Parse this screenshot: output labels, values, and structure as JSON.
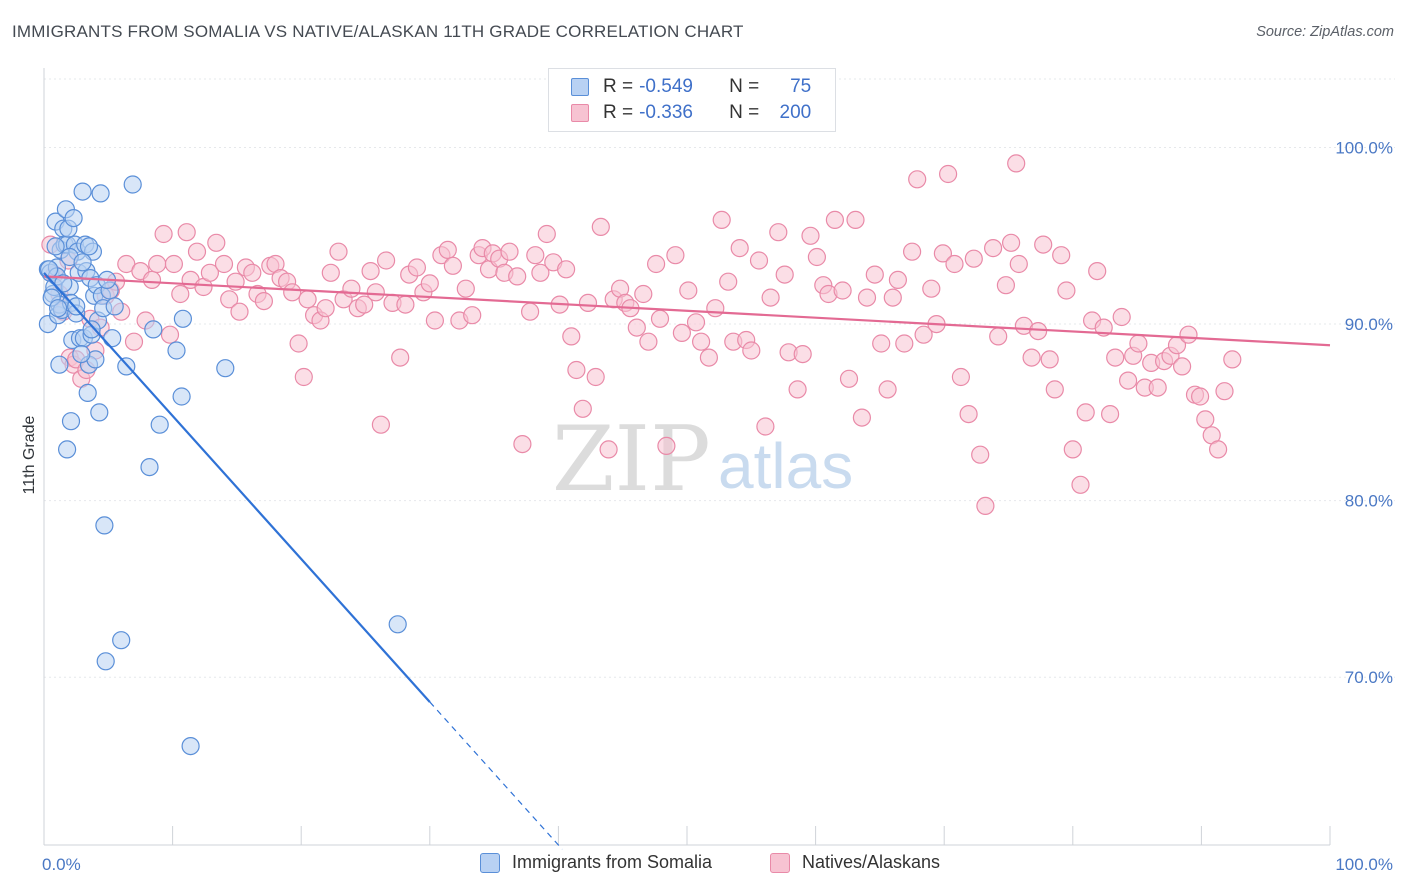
{
  "title": "IMMIGRANTS FROM SOMALIA VS NATIVE/ALASKAN 11TH GRADE CORRELATION CHART",
  "source": "Source: ZipAtlas.com",
  "watermark": {
    "zip": "ZIP",
    "atlas": "atlas"
  },
  "legend": {
    "series1": {
      "r_label": "R = ",
      "r_value": "-0.549",
      "n_label": "N = ",
      "n_value": "75"
    },
    "series2": {
      "r_label": "R = ",
      "r_value": "-0.336",
      "n_label": "N = ",
      "n_value": "200"
    }
  },
  "bottom_legend": {
    "series1": "Immigrants from Somalia",
    "series2": "Natives/Alaskans"
  },
  "colors": {
    "series1_fill": "#b8d1f3",
    "series1_stroke": "#5a8fd8",
    "series1_line": "#2f72d6",
    "series2_fill": "#f7c3d2",
    "series2_stroke": "#e98aa8",
    "series2_line": "#e36a93",
    "grid": "#e6e8eb",
    "axis_text": "#4a78c4"
  },
  "chart_data": {
    "type": "scatter",
    "title": "IMMIGRANTS FROM SOMALIA VS NATIVE/ALASKAN 11TH GRADE CORRELATION CHART",
    "xlabel": "",
    "ylabel": "11th Grade",
    "xlim": [
      0,
      100
    ],
    "ylim": [
      60.5,
      104.5
    ],
    "x_tick_labels": [
      "0.0%",
      "100.0%"
    ],
    "y_ticks": [
      70,
      80,
      90,
      100
    ],
    "y_tick_labels": [
      "70.0%",
      "80.0%",
      "90.0%",
      "100.0%"
    ],
    "grid": true,
    "legend_position": "top-center",
    "series": [
      {
        "name": "Immigrants from Somalia",
        "R": -0.549,
        "N": 75,
        "trend": {
          "x": [
            0,
            30
          ],
          "y": [
            92.9,
            68.6
          ],
          "dashed_extension_x": [
            30,
            40.3
          ]
        },
        "points": [
          [
            0.3,
            93.1
          ],
          [
            0.5,
            92.9
          ],
          [
            0.3,
            90.0
          ],
          [
            0.7,
            91.7
          ],
          [
            0.8,
            92.1
          ],
          [
            0.9,
            95.8
          ],
          [
            1.0,
            93.2
          ],
          [
            1.1,
            90.5
          ],
          [
            1.2,
            91.1
          ],
          [
            1.3,
            94.2
          ],
          [
            1.4,
            90.8
          ],
          [
            1.5,
            95.4
          ],
          [
            1.6,
            94.5
          ],
          [
            1.7,
            96.5
          ],
          [
            1.8,
            94.5
          ],
          [
            1.9,
            95.4
          ],
          [
            2.0,
            92.1
          ],
          [
            2.1,
            91.2
          ],
          [
            2.2,
            89.1
          ],
          [
            2.3,
            96.0
          ],
          [
            2.4,
            94.5
          ],
          [
            2.5,
            90.6
          ],
          [
            2.6,
            94.1
          ],
          [
            2.7,
            92.9
          ],
          [
            2.8,
            89.2
          ],
          [
            3.0,
            97.5
          ],
          [
            3.1,
            89.2
          ],
          [
            3.2,
            94.5
          ],
          [
            3.3,
            93.0
          ],
          [
            3.4,
            86.1
          ],
          [
            3.5,
            87.7
          ],
          [
            3.6,
            92.6
          ],
          [
            3.7,
            89.4
          ],
          [
            3.8,
            94.1
          ],
          [
            3.9,
            91.6
          ],
          [
            4.0,
            88.0
          ],
          [
            4.1,
            92.2
          ],
          [
            4.2,
            90.2
          ],
          [
            4.3,
            85.0
          ],
          [
            4.4,
            97.4
          ],
          [
            4.5,
            91.6
          ],
          [
            4.6,
            90.9
          ],
          [
            4.7,
            78.6
          ],
          [
            4.8,
            70.9
          ],
          [
            5.1,
            91.9
          ],
          [
            5.3,
            89.2
          ],
          [
            5.5,
            91.0
          ],
          [
            6.0,
            72.1
          ],
          [
            6.4,
            87.6
          ],
          [
            6.9,
            97.9
          ],
          [
            8.2,
            81.9
          ],
          [
            8.5,
            89.7
          ],
          [
            9.0,
            84.3
          ],
          [
            10.3,
            88.5
          ],
          [
            10.7,
            85.9
          ],
          [
            10.8,
            90.3
          ],
          [
            11.4,
            66.1
          ],
          [
            14.1,
            87.5
          ],
          [
            27.5,
            73.0
          ],
          [
            1.0,
            92.7
          ],
          [
            1.5,
            92.3
          ],
          [
            2.0,
            93.8
          ],
          [
            2.5,
            91.0
          ],
          [
            3.0,
            93.5
          ],
          [
            3.5,
            94.4
          ],
          [
            0.6,
            91.5
          ],
          [
            1.2,
            87.7
          ],
          [
            2.1,
            84.5
          ],
          [
            1.8,
            82.9
          ],
          [
            0.9,
            94.4
          ],
          [
            3.7,
            89.7
          ],
          [
            2.9,
            88.3
          ],
          [
            1.1,
            90.9
          ],
          [
            4.9,
            92.5
          ],
          [
            0.4,
            93.1
          ]
        ]
      },
      {
        "name": "Natives/Alaskans",
        "R": -0.336,
        "N": 200,
        "trend": {
          "x": [
            0,
            100
          ],
          "y": [
            92.7,
            88.8
          ]
        },
        "points": [
          [
            0.5,
            94.5
          ],
          [
            0.8,
            92.8
          ],
          [
            1.2,
            91.7
          ],
          [
            1.5,
            90.7
          ],
          [
            1.9,
            93.6
          ],
          [
            2.0,
            88.1
          ],
          [
            2.3,
            87.7
          ],
          [
            2.5,
            88.0
          ],
          [
            2.9,
            86.9
          ],
          [
            3.3,
            87.4
          ],
          [
            3.6,
            90.3
          ],
          [
            4.0,
            88.5
          ],
          [
            4.4,
            89.8
          ],
          [
            4.8,
            91.6
          ],
          [
            5.2,
            91.9
          ],
          [
            5.6,
            92.4
          ],
          [
            6.0,
            90.7
          ],
          [
            6.4,
            93.4
          ],
          [
            7.0,
            89.0
          ],
          [
            7.5,
            93.0
          ],
          [
            7.9,
            90.2
          ],
          [
            8.4,
            92.5
          ],
          [
            8.8,
            93.4
          ],
          [
            9.3,
            95.1
          ],
          [
            9.8,
            89.4
          ],
          [
            10.1,
            93.4
          ],
          [
            10.6,
            91.7
          ],
          [
            11.1,
            95.2
          ],
          [
            11.4,
            92.5
          ],
          [
            11.9,
            94.1
          ],
          [
            12.4,
            92.1
          ],
          [
            12.9,
            92.9
          ],
          [
            13.4,
            94.6
          ],
          [
            14.0,
            93.4
          ],
          [
            14.4,
            91.4
          ],
          [
            14.9,
            92.4
          ],
          [
            15.2,
            90.7
          ],
          [
            15.7,
            93.2
          ],
          [
            16.2,
            92.9
          ],
          [
            16.6,
            91.7
          ],
          [
            17.1,
            91.3
          ],
          [
            17.6,
            93.3
          ],
          [
            18.0,
            93.4
          ],
          [
            18.4,
            92.6
          ],
          [
            18.9,
            92.4
          ],
          [
            19.3,
            91.8
          ],
          [
            19.8,
            88.9
          ],
          [
            20.2,
            87.0
          ],
          [
            20.5,
            91.4
          ],
          [
            21.0,
            90.5
          ],
          [
            21.5,
            90.2
          ],
          [
            21.9,
            90.9
          ],
          [
            22.3,
            92.9
          ],
          [
            22.9,
            94.1
          ],
          [
            23.3,
            91.4
          ],
          [
            23.9,
            92.0
          ],
          [
            24.4,
            90.9
          ],
          [
            24.9,
            91.1
          ],
          [
            25.4,
            93.0
          ],
          [
            25.8,
            91.8
          ],
          [
            26.2,
            84.3
          ],
          [
            26.6,
            93.6
          ],
          [
            27.1,
            91.2
          ],
          [
            27.7,
            88.1
          ],
          [
            28.1,
            91.1
          ],
          [
            28.4,
            92.8
          ],
          [
            29.0,
            93.2
          ],
          [
            29.5,
            91.8
          ],
          [
            30.0,
            92.3
          ],
          [
            30.4,
            90.2
          ],
          [
            30.9,
            93.9
          ],
          [
            31.4,
            94.2
          ],
          [
            31.8,
            93.3
          ],
          [
            32.3,
            90.2
          ],
          [
            32.8,
            92.0
          ],
          [
            33.3,
            90.5
          ],
          [
            33.8,
            93.9
          ],
          [
            34.1,
            94.3
          ],
          [
            34.6,
            93.1
          ],
          [
            34.9,
            94.0
          ],
          [
            35.4,
            93.7
          ],
          [
            35.8,
            92.9
          ],
          [
            36.2,
            94.1
          ],
          [
            36.8,
            92.7
          ],
          [
            37.2,
            83.2
          ],
          [
            37.8,
            90.7
          ],
          [
            38.2,
            93.9
          ],
          [
            38.6,
            92.9
          ],
          [
            39.1,
            95.1
          ],
          [
            39.6,
            93.5
          ],
          [
            40.1,
            91.1
          ],
          [
            40.6,
            93.1
          ],
          [
            41.0,
            89.3
          ],
          [
            41.4,
            87.4
          ],
          [
            41.9,
            85.2
          ],
          [
            42.3,
            91.2
          ],
          [
            42.9,
            87.0
          ],
          [
            43.3,
            95.5
          ],
          [
            43.9,
            82.9
          ],
          [
            44.3,
            91.4
          ],
          [
            44.8,
            92.0
          ],
          [
            45.2,
            91.2
          ],
          [
            45.6,
            90.9
          ],
          [
            46.1,
            89.8
          ],
          [
            46.6,
            91.7
          ],
          [
            47.0,
            89.0
          ],
          [
            47.6,
            93.4
          ],
          [
            47.9,
            90.3
          ],
          [
            48.4,
            83.1
          ],
          [
            49.1,
            93.9
          ],
          [
            49.6,
            89.5
          ],
          [
            50.1,
            91.9
          ],
          [
            50.7,
            90.1
          ],
          [
            51.1,
            89.0
          ],
          [
            51.7,
            88.1
          ],
          [
            52.2,
            90.9
          ],
          [
            52.7,
            95.9
          ],
          [
            53.2,
            92.4
          ],
          [
            53.6,
            89.0
          ],
          [
            54.1,
            94.3
          ],
          [
            54.6,
            89.1
          ],
          [
            55.0,
            88.5
          ],
          [
            55.6,
            93.6
          ],
          [
            56.1,
            84.2
          ],
          [
            56.5,
            91.5
          ],
          [
            57.1,
            95.2
          ],
          [
            57.6,
            92.8
          ],
          [
            57.9,
            88.4
          ],
          [
            58.6,
            86.3
          ],
          [
            59.0,
            88.3
          ],
          [
            59.6,
            95.0
          ],
          [
            60.1,
            93.8
          ],
          [
            60.6,
            92.2
          ],
          [
            61.0,
            91.7
          ],
          [
            61.5,
            95.9
          ],
          [
            62.1,
            91.9
          ],
          [
            62.6,
            86.9
          ],
          [
            63.1,
            95.9
          ],
          [
            63.6,
            84.7
          ],
          [
            64.0,
            91.5
          ],
          [
            64.6,
            92.8
          ],
          [
            65.1,
            88.9
          ],
          [
            65.6,
            86.3
          ],
          [
            66.0,
            91.5
          ],
          [
            66.4,
            92.5
          ],
          [
            66.9,
            88.9
          ],
          [
            67.5,
            94.1
          ],
          [
            67.9,
            98.2
          ],
          [
            68.4,
            89.4
          ],
          [
            69.0,
            92.0
          ],
          [
            69.4,
            90.0
          ],
          [
            69.9,
            94.0
          ],
          [
            70.3,
            98.5
          ],
          [
            70.8,
            93.4
          ],
          [
            71.3,
            87.0
          ],
          [
            71.9,
            84.9
          ],
          [
            72.3,
            93.7
          ],
          [
            72.8,
            82.6
          ],
          [
            73.2,
            79.7
          ],
          [
            73.8,
            94.3
          ],
          [
            74.2,
            89.3
          ],
          [
            74.8,
            92.2
          ],
          [
            75.2,
            94.6
          ],
          [
            75.8,
            93.4
          ],
          [
            76.2,
            89.9
          ],
          [
            76.8,
            88.1
          ],
          [
            77.3,
            89.6
          ],
          [
            77.7,
            94.5
          ],
          [
            78.2,
            88.0
          ],
          [
            78.6,
            86.3
          ],
          [
            79.1,
            93.9
          ],
          [
            79.5,
            91.9
          ],
          [
            80.0,
            82.9
          ],
          [
            80.6,
            80.9
          ],
          [
            81.0,
            85.0
          ],
          [
            81.5,
            90.2
          ],
          [
            81.9,
            93.0
          ],
          [
            82.4,
            89.8
          ],
          [
            82.9,
            84.9
          ],
          [
            83.3,
            88.1
          ],
          [
            83.8,
            90.4
          ],
          [
            84.3,
            86.8
          ],
          [
            84.7,
            88.2
          ],
          [
            85.1,
            88.9
          ],
          [
            85.6,
            86.4
          ],
          [
            86.1,
            87.8
          ],
          [
            86.6,
            86.4
          ],
          [
            87.1,
            87.9
          ],
          [
            87.6,
            88.2
          ],
          [
            88.1,
            88.8
          ],
          [
            88.5,
            87.6
          ],
          [
            89.0,
            89.4
          ],
          [
            89.5,
            86.0
          ],
          [
            89.9,
            85.9
          ],
          [
            90.3,
            84.6
          ],
          [
            90.8,
            83.7
          ],
          [
            91.3,
            82.9
          ],
          [
            91.8,
            86.2
          ],
          [
            92.4,
            88.0
          ],
          [
            75.6,
            99.1
          ]
        ]
      }
    ]
  }
}
